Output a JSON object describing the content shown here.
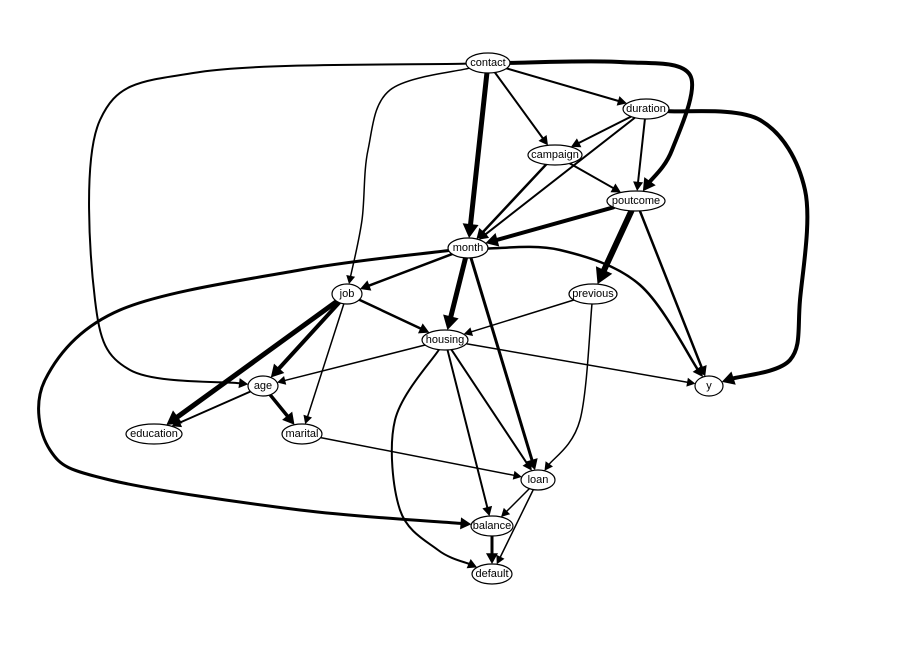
{
  "nodes": [
    {
      "id": "contact",
      "label": "contact"
    },
    {
      "id": "duration",
      "label": "duration"
    },
    {
      "id": "campaign",
      "label": "campaign"
    },
    {
      "id": "poutcome",
      "label": "poutcome"
    },
    {
      "id": "month",
      "label": "month"
    },
    {
      "id": "job",
      "label": "job"
    },
    {
      "id": "previous",
      "label": "previous"
    },
    {
      "id": "housing",
      "label": "housing"
    },
    {
      "id": "age",
      "label": "age"
    },
    {
      "id": "y",
      "label": "y"
    },
    {
      "id": "education",
      "label": "education"
    },
    {
      "id": "marital",
      "label": "marital"
    },
    {
      "id": "loan",
      "label": "loan"
    },
    {
      "id": "balance",
      "label": "balance"
    },
    {
      "id": "default",
      "label": "default"
    }
  ],
  "edges": [
    {
      "from": "contact",
      "to": "month",
      "weight": 5
    },
    {
      "from": "contact",
      "to": "campaign",
      "weight": 2
    },
    {
      "from": "contact",
      "to": "duration",
      "weight": 2
    },
    {
      "from": "contact",
      "to": "poutcome",
      "weight": 4
    },
    {
      "from": "contact",
      "to": "job",
      "weight": 1.5
    },
    {
      "from": "contact",
      "to": "age",
      "weight": 2
    },
    {
      "from": "duration",
      "to": "campaign",
      "weight": 2
    },
    {
      "from": "duration",
      "to": "poutcome",
      "weight": 2
    },
    {
      "from": "duration",
      "to": "y",
      "weight": 4
    },
    {
      "from": "campaign",
      "to": "poutcome",
      "weight": 2
    },
    {
      "from": "campaign",
      "to": "month",
      "weight": 2.5
    },
    {
      "from": "duration",
      "to": "month",
      "weight": 2
    },
    {
      "from": "poutcome",
      "to": "month",
      "weight": 4
    },
    {
      "from": "poutcome",
      "to": "previous",
      "weight": 6
    },
    {
      "from": "poutcome",
      "to": "y",
      "weight": 2.5
    },
    {
      "from": "month",
      "to": "job",
      "weight": 2.5
    },
    {
      "from": "month",
      "to": "housing",
      "weight": 5
    },
    {
      "from": "month",
      "to": "loan",
      "weight": 3
    },
    {
      "from": "month",
      "to": "y",
      "weight": 2.5
    },
    {
      "from": "month",
      "to": "balance",
      "weight": 3
    },
    {
      "from": "previous",
      "to": "housing",
      "weight": 1.5
    },
    {
      "from": "previous",
      "to": "loan",
      "weight": 1.5
    },
    {
      "from": "job",
      "to": "housing",
      "weight": 2.5
    },
    {
      "from": "job",
      "to": "age",
      "weight": 4
    },
    {
      "from": "job",
      "to": "education",
      "weight": 5
    },
    {
      "from": "job",
      "to": "marital",
      "weight": 1.5
    },
    {
      "from": "housing",
      "to": "age",
      "weight": 1.5
    },
    {
      "from": "housing",
      "to": "y",
      "weight": 1.5
    },
    {
      "from": "housing",
      "to": "loan",
      "weight": 2
    },
    {
      "from": "housing",
      "to": "balance",
      "weight": 2
    },
    {
      "from": "housing",
      "to": "default",
      "weight": 2
    },
    {
      "from": "age",
      "to": "education",
      "weight": 2
    },
    {
      "from": "age",
      "to": "marital",
      "weight": 3.5
    },
    {
      "from": "marital",
      "to": "loan",
      "weight": 1.5
    },
    {
      "from": "loan",
      "to": "balance",
      "weight": 1.5
    },
    {
      "from": "loan",
      "to": "default",
      "weight": 1.5
    },
    {
      "from": "balance",
      "to": "default",
      "weight": 3
    }
  ]
}
